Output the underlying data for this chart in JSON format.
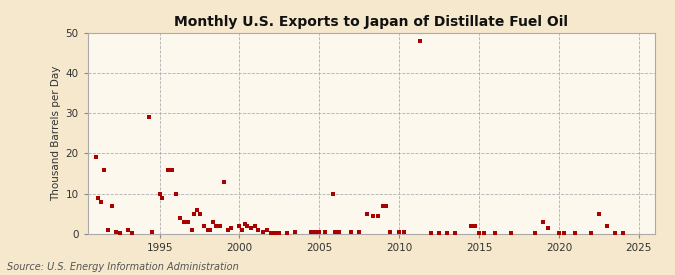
{
  "title": "Monthly U.S. Exports to Japan of Distillate Fuel Oil",
  "ylabel": "Thousand Barrels per Day",
  "source_text": "Source: U.S. Energy Information Administration",
  "background_color": "#f5e8cc",
  "plot_background_color": "#fdf8ee",
  "marker_color": "#aa0000",
  "marker_size": 5,
  "xlim": [
    1990.5,
    2026
  ],
  "ylim": [
    0,
    50
  ],
  "yticks": [
    0,
    10,
    20,
    30,
    40,
    50
  ],
  "xticks": [
    1995,
    2000,
    2005,
    2010,
    2015,
    2020,
    2025
  ],
  "data": [
    [
      1991.0,
      19.0
    ],
    [
      1991.17,
      9.0
    ],
    [
      1991.33,
      8.0
    ],
    [
      1991.5,
      16.0
    ],
    [
      1991.75,
      1.0
    ],
    [
      1992.0,
      7.0
    ],
    [
      1992.25,
      0.5
    ],
    [
      1992.5,
      0.3
    ],
    [
      1993.0,
      1.0
    ],
    [
      1993.25,
      0.3
    ],
    [
      1994.33,
      29.0
    ],
    [
      1994.5,
      0.5
    ],
    [
      1995.0,
      10.0
    ],
    [
      1995.17,
      9.0
    ],
    [
      1995.5,
      16.0
    ],
    [
      1995.75,
      16.0
    ],
    [
      1996.0,
      10.0
    ],
    [
      1996.25,
      4.0
    ],
    [
      1996.5,
      3.0
    ],
    [
      1996.75,
      3.0
    ],
    [
      1997.0,
      1.0
    ],
    [
      1997.17,
      5.0
    ],
    [
      1997.33,
      6.0
    ],
    [
      1997.5,
      5.0
    ],
    [
      1997.75,
      2.0
    ],
    [
      1998.0,
      1.0
    ],
    [
      1998.17,
      1.0
    ],
    [
      1998.33,
      3.0
    ],
    [
      1998.5,
      2.0
    ],
    [
      1998.75,
      2.0
    ],
    [
      1999.0,
      13.0
    ],
    [
      1999.25,
      1.0
    ],
    [
      1999.5,
      1.5
    ],
    [
      2000.0,
      2.0
    ],
    [
      2000.17,
      1.0
    ],
    [
      2000.33,
      2.5
    ],
    [
      2000.5,
      2.0
    ],
    [
      2000.75,
      1.5
    ],
    [
      2001.0,
      2.0
    ],
    [
      2001.17,
      1.0
    ],
    [
      2001.5,
      0.5
    ],
    [
      2001.75,
      1.0
    ],
    [
      2002.0,
      0.3
    ],
    [
      2002.25,
      0.3
    ],
    [
      2002.5,
      0.3
    ],
    [
      2003.0,
      0.3
    ],
    [
      2003.5,
      0.5
    ],
    [
      2004.5,
      0.5
    ],
    [
      2004.75,
      0.5
    ],
    [
      2005.0,
      0.5
    ],
    [
      2005.33,
      0.5
    ],
    [
      2005.83,
      10.0
    ],
    [
      2006.0,
      0.5
    ],
    [
      2006.25,
      0.5
    ],
    [
      2007.0,
      0.5
    ],
    [
      2007.5,
      0.5
    ],
    [
      2008.0,
      5.0
    ],
    [
      2008.33,
      4.5
    ],
    [
      2008.67,
      4.5
    ],
    [
      2009.0,
      7.0
    ],
    [
      2009.17,
      7.0
    ],
    [
      2009.4,
      0.5
    ],
    [
      2010.0,
      0.5
    ],
    [
      2010.33,
      0.5
    ],
    [
      2011.33,
      48.0
    ],
    [
      2012.0,
      0.3
    ],
    [
      2012.5,
      0.3
    ],
    [
      2013.0,
      0.3
    ],
    [
      2013.5,
      0.3
    ],
    [
      2014.5,
      2.0
    ],
    [
      2014.75,
      2.0
    ],
    [
      2015.0,
      0.3
    ],
    [
      2015.33,
      0.3
    ],
    [
      2016.0,
      0.3
    ],
    [
      2017.0,
      0.3
    ],
    [
      2018.5,
      0.3
    ],
    [
      2019.0,
      3.0
    ],
    [
      2019.33,
      1.5
    ],
    [
      2020.0,
      0.3
    ],
    [
      2020.33,
      0.3
    ],
    [
      2021.0,
      0.3
    ],
    [
      2022.0,
      0.3
    ],
    [
      2022.5,
      5.0
    ],
    [
      2023.0,
      2.0
    ],
    [
      2023.5,
      0.3
    ],
    [
      2024.0,
      0.3
    ]
  ]
}
